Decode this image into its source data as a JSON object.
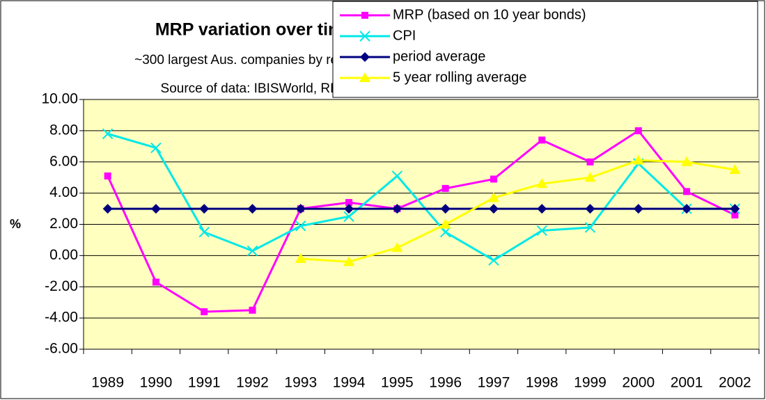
{
  "chart_data": {
    "type": "line",
    "title": "MRP variation over time",
    "subtitle": [
      "~300 largest Aus. companies by revenue",
      "Source of data: IBISWorld, RBA"
    ],
    "y_label": "%",
    "categories": [
      "1989",
      "1990",
      "1991",
      "1992",
      "1993",
      "1994",
      "1995",
      "1996",
      "1997",
      "1998",
      "1999",
      "2000",
      "2001",
      "2002"
    ],
    "series": [
      {
        "name": "MRP (based on 10 year bonds)",
        "color": "#ff00ff",
        "marker": "square",
        "values": [
          5.1,
          -1.7,
          -3.6,
          -3.5,
          3.0,
          3.4,
          3.0,
          4.3,
          4.9,
          7.4,
          6.0,
          8.0,
          4.1,
          2.6
        ]
      },
      {
        "name": "CPI",
        "color": "#00e8e8",
        "marker": "x",
        "values": [
          7.8,
          6.9,
          1.5,
          0.3,
          1.9,
          2.5,
          5.1,
          1.5,
          -0.3,
          1.6,
          1.8,
          5.9,
          3.0,
          3.0
        ]
      },
      {
        "name": "period average",
        "color": "#000080",
        "marker": "diamond",
        "values": [
          3.0,
          3.0,
          3.0,
          3.0,
          3.0,
          3.0,
          3.0,
          3.0,
          3.0,
          3.0,
          3.0,
          3.0,
          3.0,
          3.0
        ]
      },
      {
        "name": "5 year rolling average",
        "color": "#ffff00",
        "marker": "triangle",
        "values": [
          null,
          null,
          null,
          null,
          -0.2,
          -0.4,
          0.5,
          2.0,
          3.7,
          4.6,
          5.0,
          6.1,
          6.0,
          5.5
        ]
      }
    ],
    "ylim": [
      -6,
      10
    ],
    "yticks": [
      {
        "value": -6,
        "label": "-6.00"
      },
      {
        "value": -4,
        "label": "-4.00"
      },
      {
        "value": -2,
        "label": "-2.00"
      },
      {
        "value": 0,
        "label": "0.00"
      },
      {
        "value": 2,
        "label": "2.00"
      },
      {
        "value": 4,
        "label": "4.00"
      },
      {
        "value": 6,
        "label": "6.00"
      },
      {
        "value": 8,
        "label": "8.00"
      },
      {
        "value": 10,
        "label": "10.00"
      }
    ],
    "grid": true,
    "plot_background": "#ffffc0"
  }
}
